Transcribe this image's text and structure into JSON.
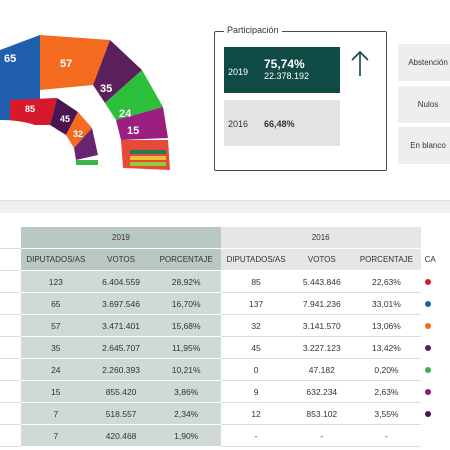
{
  "hemicycle": {
    "outer_seats": [
      65,
      57,
      35,
      24,
      15
    ],
    "inner_seats": [
      85,
      45,
      32
    ]
  },
  "participation": {
    "title": "Participación",
    "year_2019": "2019",
    "pct_2019": "75,74%",
    "votes_2019": "22.378.192",
    "year_2016": "2016",
    "pct_2016": "66,48%",
    "arrow_icon": "arrow-up-icon"
  },
  "side_buttons": [
    "Abstención",
    "Nulos",
    "En blanco"
  ],
  "table": {
    "year_headers": [
      "2019",
      "2016"
    ],
    "columns": [
      "DIPUTADOS/AS",
      "VOTOS",
      "PORCENTAJE",
      "DIPUTADOS/AS",
      "VOTOS",
      "PORCENTAJE",
      "CA"
    ],
    "rows": [
      {
        "d19": "123",
        "v19": "6.404.559",
        "p19": "28,92%",
        "d16": "85",
        "v16": "5.443.846",
        "p16": "22,63%",
        "color": "#d7192b"
      },
      {
        "d19": "65",
        "v19": "3.697.546",
        "p19": "16,70%",
        "d16": "137",
        "v16": "7.941.236",
        "p16": "33,01%",
        "color": "#1f5fae"
      },
      {
        "d19": "57",
        "v19": "3.471.401",
        "p19": "15,68%",
        "d16": "32",
        "v16": "3.141.570",
        "p16": "13,06%",
        "color": "#f46a1f"
      },
      {
        "d19": "35",
        "v19": "2.645.707",
        "p19": "11,95%",
        "d16": "45",
        "v16": "3.227.123",
        "p16": "13,42%",
        "color": "#5c1f5e"
      },
      {
        "d19": "24",
        "v19": "2.260.393",
        "p19": "10,21%",
        "d16": "0",
        "v16": "47.182",
        "p16": "0,20%",
        "color": "#39b54a"
      },
      {
        "d19": "15",
        "v19": "855.420",
        "p19": "3,86%",
        "d16": "9",
        "v16": "632.234",
        "p16": "2,63%",
        "color": "#8b1e6b"
      },
      {
        "d19": "7",
        "v19": "518.557",
        "p19": "2,34%",
        "d16": "12",
        "v16": "853.102",
        "p16": "3,55%",
        "color": "#4a1550"
      },
      {
        "d19": "7",
        "v19": "420.468",
        "p19": "1,90%",
        "d16": "-",
        "v16": "-",
        "p16": "-",
        "color": ""
      }
    ]
  },
  "colors": {
    "dark_teal": "#0f4a45",
    "red": "#d7192b",
    "blue": "#1f5fae",
    "orange": "#f46a1f",
    "purple": "#5c1f5e",
    "green": "#39b54a"
  }
}
